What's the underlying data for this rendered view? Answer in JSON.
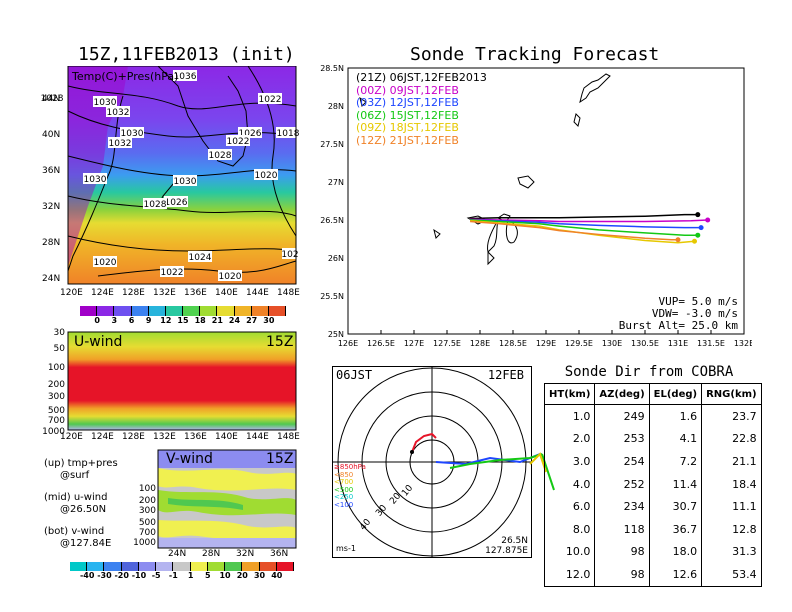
{
  "left_title": "15Z,11FEB2013 (init)",
  "right_title": "Sonde Tracking Forecast",
  "map_panel": {
    "label": "Temp(C)+Pres(hPa)",
    "lon_ticks": [
      "120E",
      "124E",
      "128E",
      "132E",
      "136E",
      "140E",
      "144E",
      "148E"
    ],
    "lat_ticks": [
      "44N",
      "40N",
      "36N",
      "32N",
      "28N",
      "24N"
    ],
    "isobar_labels": [
      "1028",
      "1030",
      "1032",
      "1030",
      "1032",
      "1030",
      "1022",
      "1026",
      "1018",
      "1022",
      "1028",
      "1030",
      "1020",
      "1026",
      "1028",
      "1024",
      "1022",
      "1020",
      "1020",
      "102",
      "1036"
    ],
    "colorbar_ticks": [
      "0",
      "3",
      "6",
      "9",
      "12",
      "15",
      "18",
      "21",
      "24",
      "27",
      "30"
    ],
    "colorbar_colors": [
      "#a000c8",
      "#8c28e6",
      "#6e50f0",
      "#3c82f0",
      "#28b4dc",
      "#28c8a0",
      "#50d250",
      "#a0dc32",
      "#e6dc32",
      "#f0b428",
      "#f08228",
      "#e65028"
    ]
  },
  "uwind_panel": {
    "title": "U-wind",
    "time": "15Z",
    "pressure_ticks": [
      "30",
      "50",
      "100",
      "200",
      "300",
      "500",
      "700",
      "1000"
    ],
    "lon_ticks": [
      "120E",
      "124E",
      "128E",
      "132E",
      "136E",
      "140E",
      "144E",
      "148E"
    ]
  },
  "vwind_panel": {
    "title": "V-wind",
    "time": "15Z",
    "pressure_ticks": [
      "100",
      "200",
      "300",
      "500",
      "700",
      "1000"
    ],
    "lat_ticks": [
      "24N",
      "28N",
      "32N",
      "36N"
    ],
    "colorbar_ticks": [
      "-40",
      "-30",
      "-20",
      "-10",
      "-5",
      "-1",
      "1",
      "5",
      "10",
      "20",
      "30",
      "40"
    ],
    "colorbar_colors": [
      "#00c8c8",
      "#28b4f0",
      "#3c82f0",
      "#5064dc",
      "#8c8cf0",
      "#b4b4f0",
      "#c8c8c8",
      "#f0f050",
      "#a0dc32",
      "#50c850",
      "#f0a028",
      "#e65028",
      "#e61428"
    ]
  },
  "legend_notes": [
    {
      "top": "(up) tmp+pres",
      "bottom": "@surf"
    },
    {
      "top": "(mid) u-wind",
      "bottom": "@26.50N"
    },
    {
      "top": "(bot) v-wind",
      "bottom": "@127.84E"
    }
  ],
  "tracking_legend": [
    {
      "text": "(21Z) 06JST,12FEB2013",
      "color": "#000000"
    },
    {
      "text": "(00Z) 09JST,12FEB",
      "color": "#c800c8"
    },
    {
      "text": "(03Z) 12JST,12FEB",
      "color": "#1e46ff"
    },
    {
      "text": "(06Z) 15JST,12FEB",
      "color": "#14c814"
    },
    {
      "text": "(09Z) 18JST,12FEB",
      "color": "#e6c800"
    },
    {
      "text": "(12Z) 21JST,12FEB",
      "color": "#f08228"
    }
  ],
  "tracking_params": {
    "vup": "VUP=  5.0  m/s",
    "vdw": "VDW= -3.0  m/s",
    "burst": "Burst Alt= 25.0  km"
  },
  "chart_data": {
    "type": "line",
    "title": "Sonde Tracking Forecast",
    "xlim": [
      126,
      132
    ],
    "ylim": [
      25,
      28.5
    ],
    "x_ticks": [
      "126E",
      "126.5E",
      "127E",
      "127.5E",
      "128E",
      "128.5E",
      "129E",
      "129.5E",
      "130E",
      "130.5E",
      "131E",
      "131.5E",
      "132E"
    ],
    "y_ticks": [
      "25N",
      "25.5N",
      "26N",
      "26.5N",
      "27N",
      "27.5N",
      "28N",
      "28.5N"
    ],
    "series": [
      {
        "name": "(21Z) 06JST,12FEB2013",
        "color": "#000000",
        "lon": [
          127.85,
          128.3,
          128.9,
          129.2,
          129.8,
          130.5,
          131.1,
          131.3
        ],
        "lat": [
          26.52,
          26.53,
          26.53,
          26.53,
          26.54,
          26.55,
          26.57,
          26.57
        ]
      },
      {
        "name": "(00Z) 09JST,12FEB",
        "color": "#c800c8",
        "lon": [
          127.85,
          128.3,
          128.9,
          129.2,
          129.8,
          130.5,
          131.2,
          131.45
        ],
        "lat": [
          26.51,
          26.5,
          26.49,
          26.48,
          26.48,
          26.48,
          26.49,
          26.5
        ]
      },
      {
        "name": "(03Z) 12JST,12FEB",
        "color": "#1e46ff",
        "lon": [
          127.85,
          128.3,
          128.9,
          129.2,
          129.8,
          130.5,
          131.1,
          131.35
        ],
        "lat": [
          26.5,
          26.49,
          26.47,
          26.45,
          26.43,
          26.41,
          26.4,
          26.4
        ]
      },
      {
        "name": "(06Z) 15JST,12FEB",
        "color": "#14c814",
        "lon": [
          127.85,
          128.3,
          128.9,
          129.2,
          129.8,
          130.5,
          131.1,
          131.3
        ],
        "lat": [
          26.5,
          26.48,
          26.45,
          26.42,
          26.37,
          26.33,
          26.3,
          26.3
        ]
      },
      {
        "name": "(09Z) 18JST,12FEB",
        "color": "#e6c800",
        "lon": [
          127.85,
          128.3,
          128.9,
          129.2,
          129.8,
          130.5,
          131.0,
          131.25
        ],
        "lat": [
          26.49,
          26.46,
          26.42,
          26.37,
          26.3,
          26.23,
          26.2,
          26.22
        ]
      },
      {
        "name": "(12Z) 21JST,12FEB",
        "color": "#f08228",
        "lon": [
          127.85,
          128.3,
          128.9,
          129.2,
          129.8,
          130.5,
          130.9,
          131.0
        ],
        "lat": [
          26.48,
          26.45,
          26.4,
          26.36,
          26.31,
          26.26,
          26.24,
          26.24
        ]
      }
    ]
  },
  "polar_panel": {
    "time": "06JST",
    "date": "12FEB",
    "ring_labels": [
      "10",
      "20",
      "30",
      "40"
    ],
    "level_legend": [
      {
        "text": "≥850hPa",
        "color": "#e61428"
      },
      {
        "text": "<850",
        "color": "#f08228"
      },
      {
        "text": "<700",
        "color": "#e6c800"
      },
      {
        "text": "<500",
        "color": "#14c814"
      },
      {
        "text": "<250",
        "color": "#00c8c8"
      },
      {
        "text": "<100",
        "color": "#1e46ff"
      }
    ],
    "units": "ms-1",
    "location_lat": "26.5N",
    "location_lon": "127.875E"
  },
  "direction_table": {
    "title": "Sonde Dir from COBRA",
    "headers": [
      "HT(km)",
      "AZ(deg)",
      "EL(deg)",
      "RNG(km)"
    ],
    "rows": [
      [
        "1.0",
        "249",
        "1.6",
        "23.7"
      ],
      [
        "2.0",
        "253",
        "4.1",
        "22.8"
      ],
      [
        "3.0",
        "254",
        "7.2",
        "21.1"
      ],
      [
        "4.0",
        "252",
        "11.4",
        "18.4"
      ],
      [
        "6.0",
        "234",
        "30.7",
        "11.1"
      ],
      [
        "8.0",
        "118",
        "36.7",
        "12.8"
      ],
      [
        "10.0",
        "98",
        "18.0",
        "31.3"
      ],
      [
        "12.0",
        "98",
        "12.6",
        "53.4"
      ]
    ]
  }
}
